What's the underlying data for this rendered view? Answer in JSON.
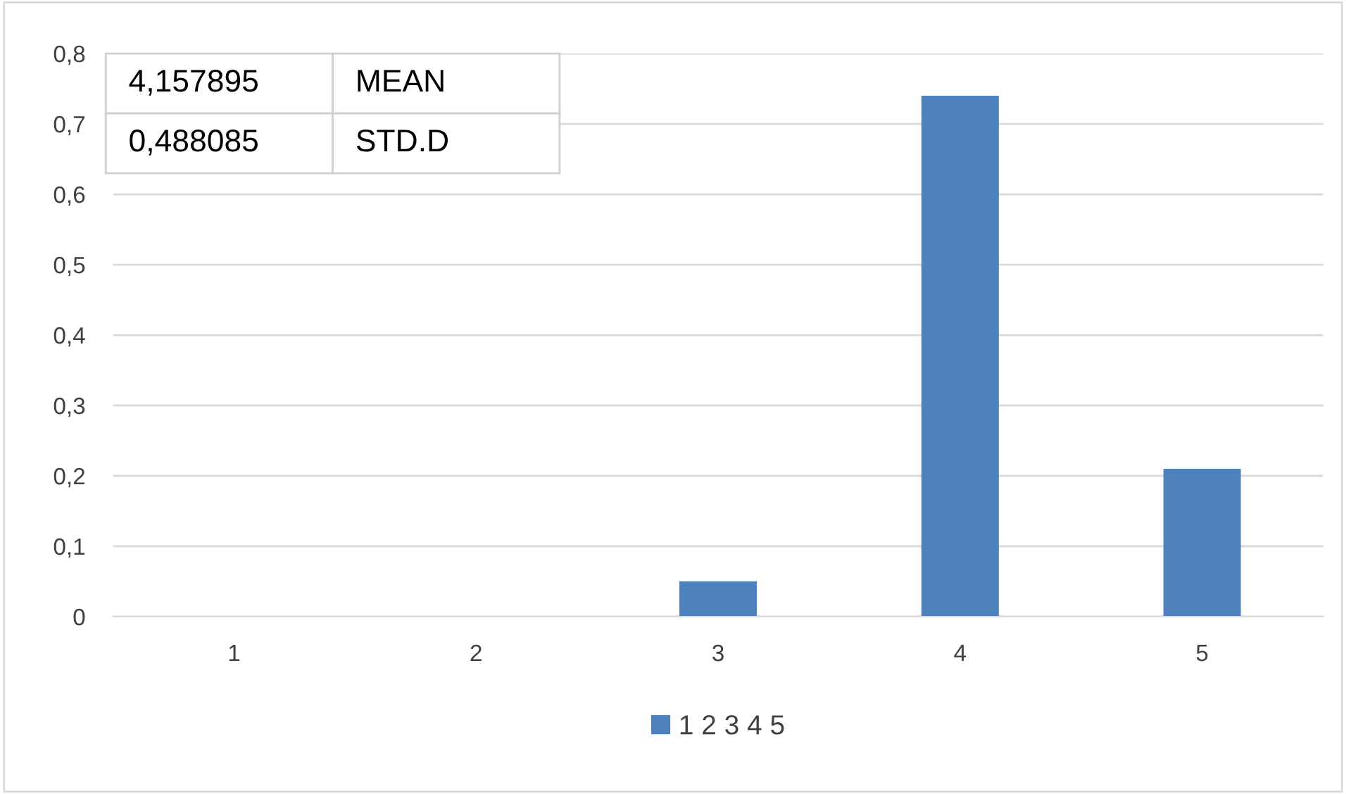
{
  "chart_data": {
    "type": "bar",
    "categories": [
      "1",
      "2",
      "3",
      "4",
      "5"
    ],
    "series": [
      {
        "name": "1 2 3 4 5",
        "color": "#4f81bd",
        "values": [
          0,
          0,
          0.05,
          0.74,
          0.21
        ]
      }
    ],
    "ylim": [
      0,
      0.8
    ],
    "yticks": [
      0,
      {
        "value": 0.1,
        "label": "0,1"
      },
      {
        "value": 0.2,
        "label": "0,2"
      },
      {
        "value": 0.3,
        "label": "0,3"
      },
      {
        "value": 0.4,
        "label": "0,4"
      },
      {
        "value": 0.5,
        "label": "0,5"
      },
      {
        "value": 0.6,
        "label": "0,6"
      },
      {
        "value": 0.7,
        "label": "0,7"
      },
      {
        "value": 0.8,
        "label": "0,8"
      }
    ],
    "grid": "y",
    "legend": "bottom",
    "annotations": [
      "4,157895",
      "MEAN",
      "0,488085",
      "STD.D"
    ]
  }
}
